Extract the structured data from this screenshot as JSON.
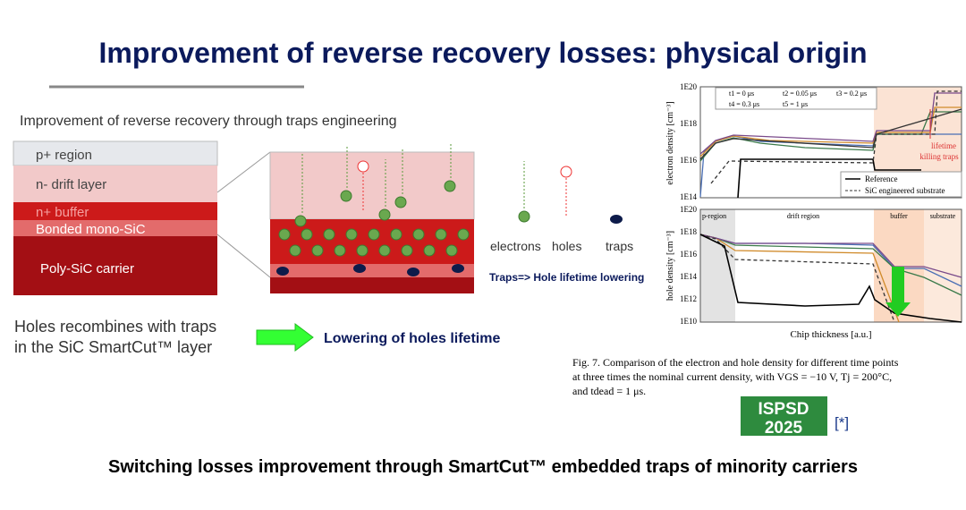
{
  "title": "Improvement of reverse recovery losses: physical origin",
  "left": {
    "heading": "Improvement of reverse recovery through traps engineering",
    "layers": [
      "p+ region",
      "n- drift layer",
      "n+ buffer",
      "Bonded mono-SiC",
      "Poly-SiC carrier"
    ],
    "caption": [
      "Holes recombines with traps",
      "in the SiC SmartCut™ layer"
    ],
    "arrow_label": "Lowering of holes lifetime"
  },
  "legend": {
    "electrons": "electrons",
    "holes": "holes",
    "traps": "traps",
    "note": "Traps=> Hole lifetime lowering"
  },
  "figure": {
    "top": {
      "ylabel": "electron density [cm⁻³]",
      "ticks": [
        "1E20",
        "1E18",
        "1E16",
        "1E14"
      ],
      "legend": [
        "t1 =  0 μs",
        "t2 = 0.05 μs",
        "t3 = 0.2 μs",
        "t4 = 0.3 μs",
        "t5 =  1 μs"
      ],
      "annotation": [
        "lifetime",
        "killing traps"
      ],
      "legend2": [
        "Reference",
        "SiC engineered substrate"
      ]
    },
    "bottom": {
      "ylabel": "hole density [cm⁻³]",
      "ticks": [
        "1E20",
        "1E18",
        "1E16",
        "1E14",
        "1E12",
        "1E10"
      ],
      "regions": [
        "p-region",
        "drift region",
        "buffer",
        "substrate"
      ]
    },
    "xlabel": "Chip thickness [a.u.]",
    "caption": [
      "Fig. 7.  Comparison of the electron and hole density for different time points",
      "at three times the nominal current density, with VGS = −10 V, Tj = 200°C,",
      "and tdead = 1 μs."
    ]
  },
  "logo": [
    "ISPSD",
    "2025"
  ],
  "ref": "[*]",
  "footer": "Switching losses improvement through SmartCut™ embedded traps of minority carriers"
}
